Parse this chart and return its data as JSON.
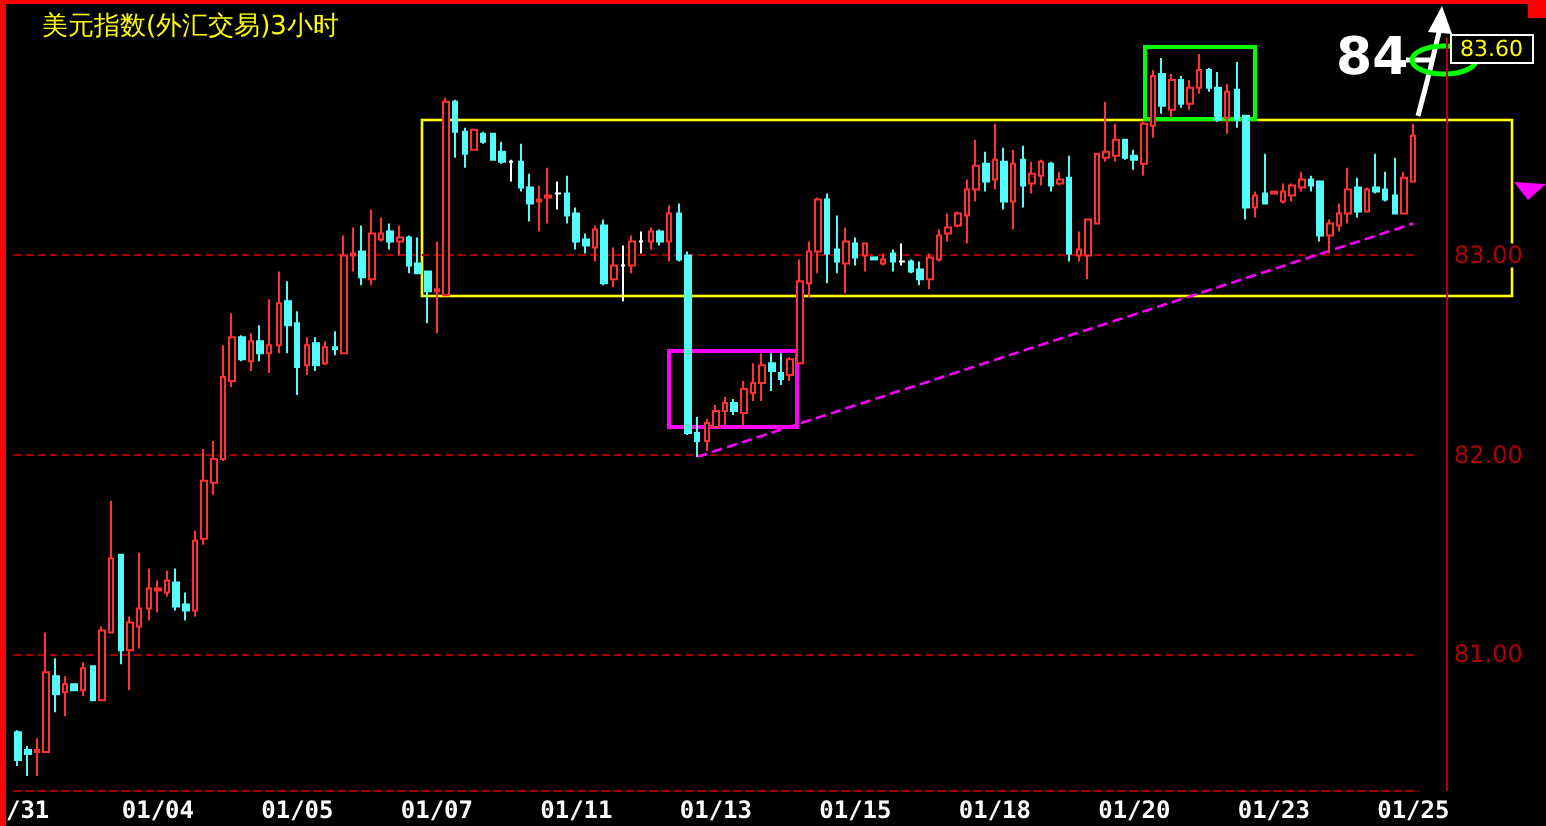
{
  "chart_data": {
    "type": "candlestick",
    "title": "美元指数(外汇交易)3小时",
    "categories": [
      null,
      "/31",
      null,
      null,
      null,
      null,
      null,
      null,
      null,
      null,
      null,
      null,
      null,
      null,
      null,
      "01/04",
      null,
      null,
      null,
      null,
      null,
      null,
      null,
      null,
      null,
      null,
      null,
      null,
      null,
      null,
      "01/05",
      null,
      null,
      null,
      null,
      null,
      null,
      null,
      null,
      null,
      null,
      null,
      null,
      null,
      null,
      "01/07",
      null,
      null,
      null,
      null,
      null,
      null,
      null,
      null,
      null,
      null,
      null,
      null,
      null,
      null,
      "01/11",
      null,
      null,
      null,
      null,
      null,
      null,
      null,
      null,
      null,
      null,
      null,
      null,
      null,
      null,
      "01/13",
      null,
      null,
      null,
      null,
      null,
      null,
      null,
      null,
      null,
      null,
      null,
      null,
      null,
      null,
      "01/15",
      null,
      null,
      null,
      null,
      null,
      null,
      null,
      null,
      null,
      null,
      null,
      null,
      null,
      null,
      "01/18",
      null,
      null,
      null,
      null,
      null,
      null,
      null,
      null,
      null,
      null,
      null,
      null,
      null,
      null,
      "01/20",
      null,
      null,
      null,
      null,
      null,
      null,
      null,
      null,
      null,
      null,
      null,
      null,
      null,
      null,
      "01/23",
      null,
      null,
      null,
      null,
      null,
      null,
      null,
      null,
      null,
      null,
      null,
      null,
      null,
      null,
      "01/25"
    ],
    "ohlc": [
      [
        80.61,
        80.62,
        80.44,
        80.47
      ],
      [
        80.52,
        80.54,
        80.39,
        80.5
      ],
      [
        80.51,
        80.58,
        80.39,
        80.52
      ],
      [
        80.51,
        81.11,
        80.51,
        80.91
      ],
      [
        80.89,
        80.98,
        80.71,
        80.8
      ],
      [
        80.81,
        80.89,
        80.69,
        80.85
      ],
      [
        80.85,
        80.85,
        80.82,
        80.82
      ],
      [
        80.82,
        80.96,
        80.79,
        80.93
      ],
      [
        80.94,
        80.94,
        80.77,
        80.77
      ],
      [
        80.77,
        81.14,
        80.77,
        81.12
      ],
      [
        81.11,
        81.77,
        81.11,
        81.48
      ],
      [
        81.5,
        81.5,
        80.95,
        81.02
      ],
      [
        81.02,
        81.19,
        80.82,
        81.16
      ],
      [
        81.14,
        81.51,
        81.03,
        81.23
      ],
      [
        81.23,
        81.43,
        81.17,
        81.33
      ],
      [
        81.32,
        81.37,
        81.21,
        81.33
      ],
      [
        81.31,
        81.42,
        81.29,
        81.37
      ],
      [
        81.36,
        81.43,
        81.22,
        81.24
      ],
      [
        81.25,
        81.31,
        81.17,
        81.22
      ],
      [
        81.22,
        81.62,
        81.19,
        81.57
      ],
      [
        81.58,
        82.03,
        81.55,
        81.87
      ],
      [
        81.86,
        82.07,
        81.8,
        81.98
      ],
      [
        81.98,
        82.55,
        81.97,
        82.39
      ],
      [
        82.37,
        82.71,
        82.34,
        82.59
      ],
      [
        82.59,
        82.6,
        82.47,
        82.48
      ],
      [
        82.47,
        82.61,
        82.42,
        82.57
      ],
      [
        82.57,
        82.65,
        82.47,
        82.51
      ],
      [
        82.51,
        82.78,
        82.41,
        82.55
      ],
      [
        82.55,
        82.92,
        82.51,
        82.76
      ],
      [
        82.77,
        82.87,
        82.51,
        82.65
      ],
      [
        82.66,
        82.72,
        82.3,
        82.44
      ],
      [
        82.45,
        82.59,
        82.4,
        82.55
      ],
      [
        82.56,
        82.59,
        82.42,
        82.45
      ],
      [
        82.46,
        82.57,
        82.45,
        82.54
      ],
      [
        82.54,
        82.62,
        82.5,
        82.53
      ],
      [
        82.51,
        83.1,
        82.51,
        83.0
      ],
      [
        83.0,
        83.14,
        82.92,
        83.01
      ],
      [
        83.02,
        83.15,
        82.85,
        82.89
      ],
      [
        82.88,
        83.23,
        82.85,
        83.11
      ],
      [
        83.08,
        83.19,
        83.07,
        83.11
      ],
      [
        83.12,
        83.16,
        83.03,
        83.07
      ],
      [
        83.07,
        83.15,
        83.0,
        83.09
      ],
      [
        83.09,
        83.1,
        82.91,
        82.95
      ],
      [
        82.96,
        83.09,
        82.91,
        82.91
      ],
      [
        82.92,
        82.92,
        82.66,
        82.82
      ],
      [
        82.82,
        83.07,
        82.61,
        82.83
      ],
      [
        82.8,
        83.79,
        82.8,
        83.77
      ],
      [
        83.77,
        83.78,
        83.49,
        83.62
      ],
      [
        83.62,
        83.64,
        83.44,
        83.51
      ],
      [
        83.53,
        83.63,
        83.53,
        83.63
      ],
      [
        83.61,
        83.62,
        83.56,
        83.57
      ],
      [
        83.61,
        83.61,
        83.48,
        83.48
      ],
      [
        83.52,
        83.57,
        83.46,
        83.47
      ],
      [
        83.47,
        83.48,
        83.37,
        83.47
      ],
      [
        83.47,
        83.56,
        83.32,
        83.34
      ],
      [
        83.34,
        83.41,
        83.17,
        83.26
      ],
      [
        83.27,
        83.35,
        83.12,
        83.28
      ],
      [
        83.29,
        83.44,
        83.16,
        83.3
      ],
      [
        83.31,
        83.37,
        83.23,
        83.31
      ],
      [
        83.31,
        83.4,
        83.16,
        83.2
      ],
      [
        83.21,
        83.24,
        83.03,
        83.07
      ],
      [
        83.08,
        83.11,
        83.01,
        83.05
      ],
      [
        83.04,
        83.15,
        82.97,
        83.13
      ],
      [
        83.15,
        83.18,
        82.85,
        82.86
      ],
      [
        82.88,
        83.04,
        82.84,
        82.95
      ],
      [
        82.95,
        83.05,
        82.77,
        82.95
      ],
      [
        82.95,
        83.1,
        82.91,
        83.07
      ],
      [
        83.07,
        83.12,
        83.01,
        83.07
      ],
      [
        83.07,
        83.14,
        83.03,
        83.12
      ],
      [
        83.12,
        83.13,
        83.05,
        83.07
      ],
      [
        83.07,
        83.25,
        82.97,
        83.21
      ],
      [
        83.21,
        83.26,
        82.97,
        82.98
      ],
      [
        83.0,
        83.02,
        82.1,
        82.11
      ],
      [
        82.11,
        82.19,
        81.99,
        82.07
      ],
      [
        82.07,
        82.18,
        82.02,
        82.16
      ],
      [
        82.14,
        82.25,
        82.14,
        82.22
      ],
      [
        82.22,
        82.29,
        82.14,
        82.26
      ],
      [
        82.26,
        82.28,
        82.2,
        82.22
      ],
      [
        82.21,
        82.37,
        82.14,
        82.33
      ],
      [
        82.31,
        82.46,
        82.27,
        82.36
      ],
      [
        82.36,
        82.51,
        82.27,
        82.45
      ],
      [
        82.46,
        82.51,
        82.32,
        82.42
      ],
      [
        82.41,
        82.51,
        82.35,
        82.38
      ],
      [
        82.4,
        82.49,
        82.37,
        82.48
      ],
      [
        82.46,
        82.98,
        82.46,
        82.87
      ],
      [
        82.86,
        83.07,
        82.79,
        83.02
      ],
      [
        83.02,
        83.29,
        82.91,
        83.28
      ],
      [
        83.28,
        83.31,
        82.86,
        83.01
      ],
      [
        83.03,
        83.2,
        82.91,
        82.97
      ],
      [
        82.96,
        83.14,
        82.81,
        83.07
      ],
      [
        83.06,
        83.09,
        82.95,
        82.99
      ],
      [
        83.0,
        83.06,
        82.92,
        83.06
      ],
      [
        82.99,
        82.99,
        82.98,
        82.98
      ],
      [
        82.96,
        83.01,
        82.95,
        82.98
      ],
      [
        83.01,
        83.03,
        82.92,
        82.97
      ],
      [
        82.97,
        83.06,
        82.95,
        82.97
      ],
      [
        82.97,
        82.98,
        82.91,
        82.92
      ],
      [
        82.93,
        82.97,
        82.85,
        82.88
      ],
      [
        82.88,
        83.01,
        82.83,
        82.99
      ],
      [
        82.98,
        83.13,
        82.97,
        83.1
      ],
      [
        83.11,
        83.21,
        83.07,
        83.14
      ],
      [
        83.15,
        83.22,
        83.14,
        83.21
      ],
      [
        83.2,
        83.38,
        83.06,
        83.33
      ],
      [
        83.33,
        83.58,
        83.27,
        83.45
      ],
      [
        83.46,
        83.52,
        83.32,
        83.37
      ],
      [
        83.38,
        83.66,
        83.33,
        83.48
      ],
      [
        83.47,
        83.54,
        83.23,
        83.27
      ],
      [
        83.27,
        83.53,
        83.13,
        83.46
      ],
      [
        83.48,
        83.55,
        83.24,
        83.35
      ],
      [
        83.36,
        83.47,
        83.31,
        83.41
      ],
      [
        83.4,
        83.48,
        83.35,
        83.47
      ],
      [
        83.46,
        83.47,
        83.32,
        83.35
      ],
      [
        83.36,
        83.42,
        83.35,
        83.38
      ],
      [
        83.39,
        83.5,
        82.97,
        83.01
      ],
      [
        83.0,
        83.12,
        82.97,
        83.03
      ],
      [
        83.0,
        83.18,
        82.88,
        83.18
      ],
      [
        83.16,
        83.51,
        83.16,
        83.51
      ],
      [
        83.49,
        83.77,
        83.47,
        83.52
      ],
      [
        83.5,
        83.66,
        83.47,
        83.58
      ],
      [
        83.58,
        83.58,
        83.48,
        83.49
      ],
      [
        83.5,
        83.53,
        83.43,
        83.48
      ],
      [
        83.46,
        83.67,
        83.4,
        83.66
      ],
      [
        83.65,
        83.93,
        83.59,
        83.9
      ],
      [
        83.91,
        83.99,
        83.71,
        83.75
      ],
      [
        83.73,
        83.91,
        83.69,
        83.88
      ],
      [
        83.88,
        83.9,
        83.74,
        83.76
      ],
      [
        83.76,
        83.88,
        83.73,
        83.84
      ],
      [
        83.84,
        84.01,
        83.81,
        83.93
      ],
      [
        83.93,
        83.94,
        83.82,
        83.84
      ],
      [
        83.84,
        83.92,
        83.67,
        83.68
      ],
      [
        83.69,
        83.86,
        83.61,
        83.82
      ],
      [
        83.83,
        83.97,
        83.64,
        83.68
      ],
      [
        83.7,
        83.7,
        83.18,
        83.24
      ],
      [
        83.24,
        83.32,
        83.19,
        83.3
      ],
      [
        83.31,
        83.51,
        83.26,
        83.26
      ],
      [
        83.31,
        83.32,
        83.31,
        83.32
      ],
      [
        83.27,
        83.36,
        83.26,
        83.32
      ],
      [
        83.3,
        83.36,
        83.27,
        83.35
      ],
      [
        83.34,
        83.42,
        83.32,
        83.38
      ],
      [
        83.38,
        83.4,
        83.32,
        83.35
      ],
      [
        83.37,
        83.37,
        83.07,
        83.1
      ],
      [
        83.1,
        83.18,
        83.01,
        83.16
      ],
      [
        83.15,
        83.26,
        83.12,
        83.21
      ],
      [
        83.21,
        83.44,
        83.16,
        83.33
      ],
      [
        83.34,
        83.39,
        83.19,
        83.22
      ],
      [
        83.22,
        83.34,
        83.22,
        83.33
      ],
      [
        83.34,
        83.51,
        83.31,
        83.32
      ],
      [
        83.33,
        83.42,
        83.27,
        83.28
      ],
      [
        83.3,
        83.49,
        83.21,
        83.21
      ],
      [
        83.21,
        83.42,
        83.21,
        83.39
      ],
      [
        83.37,
        83.66,
        83.37,
        83.6
      ]
    ],
    "ylim": [
      80.32,
      84.09
    ],
    "yticks": [
      {
        "value": 81,
        "label": "81.00"
      },
      {
        "value": 82,
        "label": "82.00"
      },
      {
        "value": 83,
        "label": "83.00"
      }
    ],
    "series": [
      {
        "type": "line",
        "color": "#ff00ff",
        "line_style": "dashed",
        "values": [
          null,
          null,
          null,
          null,
          null,
          null,
          null,
          null,
          null,
          null,
          null,
          null,
          null,
          null,
          null,
          null,
          null,
          null,
          null,
          null,
          null,
          null,
          null,
          null,
          null,
          null,
          null,
          null,
          null,
          null,
          null,
          null,
          null,
          null,
          null,
          null,
          null,
          null,
          null,
          null,
          null,
          null,
          null,
          null,
          null,
          null,
          null,
          null,
          null,
          null,
          null,
          null,
          null,
          null,
          null,
          null,
          null,
          null,
          null,
          null,
          null,
          null,
          null,
          null,
          null,
          null,
          null,
          null,
          null,
          null,
          null,
          null,
          null,
          81.99,
          null,
          null,
          null,
          null,
          null,
          null,
          null,
          null,
          null,
          null,
          null,
          null,
          null,
          null,
          null,
          null,
          null,
          null,
          null,
          null,
          null,
          null,
          null,
          null,
          null,
          null,
          null,
          null,
          null,
          null,
          null,
          null,
          null,
          null,
          null,
          null,
          null,
          null,
          null,
          null,
          null,
          null,
          null,
          null,
          null,
          null,
          null,
          null,
          null,
          null,
          null,
          null,
          null,
          null,
          null,
          null,
          null,
          null,
          null,
          null,
          null,
          null,
          null,
          null,
          null,
          null,
          null,
          null,
          null,
          null,
          null,
          null,
          null,
          null,
          null,
          null,
          83.16
        ]
      }
    ],
    "grid": "y",
    "annotations": [
      "84",
      "83.60"
    ]
  }
}
